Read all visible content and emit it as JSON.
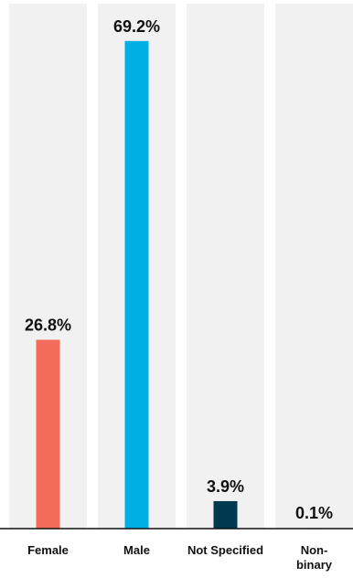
{
  "chart_data": {
    "type": "bar",
    "title": "",
    "xlabel": "",
    "ylabel": "",
    "categories": [
      "Female",
      "Male",
      "Not Specified",
      "Non-binary"
    ],
    "tick_label_lines": [
      [
        "Female"
      ],
      [
        "Male"
      ],
      [
        "Not Specified"
      ],
      [
        "Non-",
        "binary"
      ]
    ],
    "values": [
      26.8,
      69.2,
      3.9,
      0.1
    ],
    "value_labels": [
      "26.8%",
      "69.2%",
      "3.9%",
      "0.1%"
    ],
    "unit": "%",
    "ylim": [
      0,
      74.5
    ],
    "bar_colors": [
      "#f26b5b",
      "#00b0e4",
      "#003a4f",
      "#9dd4bf"
    ],
    "column_background_color": "#f1f1f1",
    "axis_color": "#111111",
    "grid": false,
    "legend": "none"
  }
}
